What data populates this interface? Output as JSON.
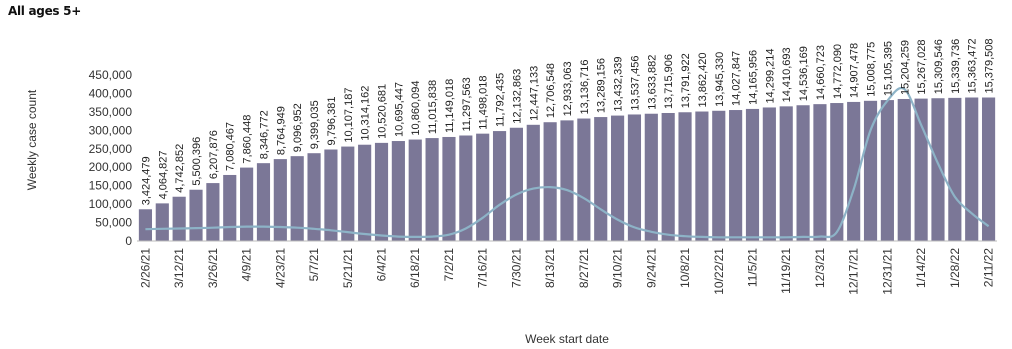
{
  "chart_data": {
    "type": "bar",
    "title": "All ages 5+",
    "xlabel": "Week start date",
    "ylabel": "Weekly case count",
    "ylim": [
      0,
      450000
    ],
    "yticks": [
      "0",
      "50,000",
      "100,000",
      "150,000",
      "200,000",
      "250,000",
      "300,000",
      "350,000",
      "400,000",
      "450,000"
    ],
    "categories": [
      "2/26/21",
      "3/5/21",
      "3/12/21",
      "3/19/21",
      "3/26/21",
      "4/2/21",
      "4/9/21",
      "4/16/21",
      "4/23/21",
      "4/30/21",
      "5/7/21",
      "5/14/21",
      "5/21/21",
      "5/28/21",
      "6/4/21",
      "6/11/21",
      "6/18/21",
      "6/25/21",
      "7/2/21",
      "7/9/21",
      "7/16/21",
      "7/23/21",
      "7/30/21",
      "8/6/21",
      "8/13/21",
      "8/20/21",
      "8/27/21",
      "9/3/21",
      "9/10/21",
      "9/17/21",
      "9/24/21",
      "10/1/21",
      "10/8/21",
      "10/15/21",
      "10/22/21",
      "10/29/21",
      "11/5/21",
      "11/12/21",
      "11/19/21",
      "11/26/21",
      "12/3/21",
      "12/10/21",
      "12/17/21",
      "12/24/21",
      "12/31/21",
      "1/7/22",
      "1/14/22",
      "1/21/22",
      "1/28/22",
      "2/4/22",
      "2/11/22"
    ],
    "x_tick_labels": [
      "2/26/21",
      "3/12/21",
      "3/26/21",
      "4/9/21",
      "4/23/21",
      "5/7/21",
      "5/21/21",
      "6/4/21",
      "6/18/21",
      "7/2/21",
      "7/16/21",
      "7/30/21",
      "8/13/21",
      "8/27/21",
      "9/10/21",
      "9/24/21",
      "10/8/21",
      "10/22/21",
      "11/5/21",
      "11/19/21",
      "12/3/21",
      "12/17/21",
      "12/31/21",
      "1/14/22",
      "1/28/22",
      "2/11/22"
    ],
    "bar_labels": [
      "3,424,479",
      "4,064,827",
      "4,742,852",
      "5,500,396",
      "6,207,876",
      "7,080,467",
      "7,860,448",
      "8,346,772",
      "8,764,949",
      "9,096,952",
      "9,399,035",
      "9,796,381",
      "10,107,187",
      "10,314,162",
      "10,520,681",
      "10,695,447",
      "10,860,094",
      "11,015,838",
      "11,149,018",
      "11,297,563",
      "11,498,018",
      "11,792,435",
      "12,132,863",
      "12,447,133",
      "12,706,548",
      "12,933,063",
      "13,136,716",
      "13,289,156",
      "13,432,339",
      "13,537,456",
      "13,633,882",
      "13,715,906",
      "13,791,922",
      "13,862,420",
      "13,945,330",
      "14,027,847",
      "14,165,956",
      "14,299,214",
      "14,410,693",
      "14,536,169",
      "14,660,723",
      "14,772,090",
      "14,907,478",
      "15,008,775",
      "15,105,395",
      "15,204,259",
      "15,267,028",
      "15,309,546",
      "15,339,736",
      "15,363,472",
      "15,379,508"
    ],
    "series": [
      {
        "type": "bar",
        "values": [
          86000,
          102000,
          120000,
          139000,
          157000,
          179000,
          199000,
          211000,
          222000,
          230000,
          238000,
          248000,
          256000,
          261000,
          266000,
          271000,
          275000,
          279000,
          282000,
          286000,
          291000,
          298000,
          307000,
          315000,
          322000,
          327000,
          332000,
          336000,
          340000,
          343000,
          345000,
          347000,
          349000,
          351000,
          353000,
          355000,
          358000,
          362000,
          365000,
          368000,
          371000,
          374000,
          377000,
          380000,
          382000,
          385000,
          386000,
          387000,
          388000,
          389000,
          389000
        ]
      },
      {
        "type": "line",
        "values": [
          32000,
          33000,
          34000,
          35000,
          36000,
          38000,
          39000,
          39000,
          38000,
          36000,
          33000,
          29000,
          24000,
          19000,
          15000,
          12000,
          11000,
          12000,
          17000,
          34000,
          63000,
          98000,
          126000,
          142000,
          146000,
          138000,
          116000,
          86000,
          58000,
          37000,
          25000,
          17000,
          13000,
          11000,
          10000,
          10000,
          10000,
          10000,
          10000,
          11000,
          12000,
          24000,
          140000,
          300000,
          380000,
          412000,
          315000,
          210000,
          120000,
          75000,
          40000
        ]
      }
    ],
    "colors": {
      "bar": "#7b7797",
      "line": "#8db3c7"
    },
    "grid": false,
    "legend": "none"
  }
}
